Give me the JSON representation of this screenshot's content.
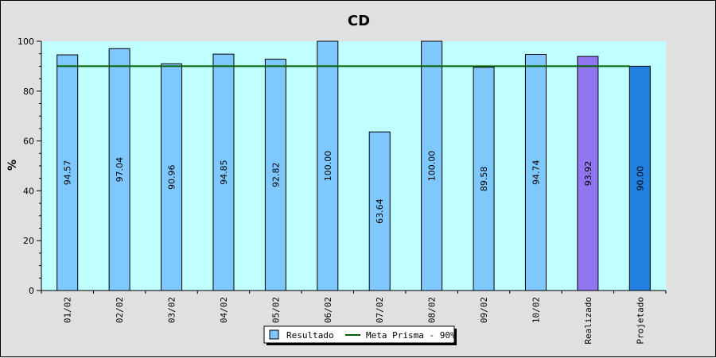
{
  "chart_data": {
    "type": "bar",
    "title": "CD",
    "ylabel": "%",
    "xlabel": "",
    "ylim": [
      0,
      100
    ],
    "yticks": [
      0,
      20,
      40,
      60,
      80,
      100
    ],
    "grid": false,
    "legend_position": "bottom-center",
    "categories": [
      "01/02",
      "02/02",
      "03/02",
      "04/02",
      "05/02",
      "06/02",
      "07/02",
      "08/02",
      "09/02",
      "10/02",
      "Realizado",
      "Projetado"
    ],
    "series": [
      {
        "name": "Resultado",
        "values": [
          94.57,
          97.04,
          90.96,
          94.85,
          92.82,
          100.0,
          63.64,
          100.0,
          89.58,
          94.74,
          93.92,
          90.0
        ],
        "labels": [
          "94.57",
          "97.04",
          "90.96",
          "94.85",
          "92.82",
          "100.00",
          "63.64",
          "100.00",
          "89.58",
          "94.74",
          "93.92",
          "90.00"
        ],
        "colors": [
          "#7fc8ff",
          "#7fc8ff",
          "#7fc8ff",
          "#7fc8ff",
          "#7fc8ff",
          "#7fc8ff",
          "#7fc8ff",
          "#7fc8ff",
          "#7fc8ff",
          "#7fc8ff",
          "#9077f0",
          "#2280e0"
        ]
      },
      {
        "name": "Meta Prisma - 90%",
        "type": "line",
        "value": 90
      }
    ]
  },
  "colors": {
    "background": "#e0e0e0",
    "plot_background": "#c0ffff",
    "bar": "#7fc8ff",
    "goal_line": "#006000"
  }
}
